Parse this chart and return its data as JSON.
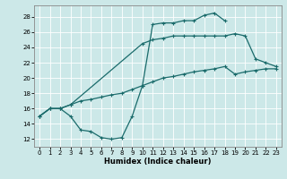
{
  "xlabel": "Humidex (Indice chaleur)",
  "xlim": [
    -0.5,
    23.5
  ],
  "ylim": [
    11,
    29.5
  ],
  "xticks": [
    0,
    1,
    2,
    3,
    4,
    5,
    6,
    7,
    8,
    9,
    10,
    11,
    12,
    13,
    14,
    15,
    16,
    17,
    18,
    19,
    20,
    21,
    22,
    23
  ],
  "yticks": [
    12,
    14,
    16,
    18,
    20,
    22,
    24,
    26,
    28
  ],
  "bg_color": "#cce8e8",
  "line_color": "#1a6b6b",
  "line1": {
    "x": [
      0,
      1,
      2,
      3,
      4,
      5,
      6,
      7,
      8,
      9,
      10,
      11,
      12,
      13,
      14,
      15,
      16,
      17,
      18
    ],
    "y": [
      15,
      16,
      16,
      15,
      13.2,
      13,
      12.2,
      12,
      12.2,
      15,
      19,
      27,
      27.2,
      27.2,
      27.5,
      27.5,
      28.2,
      28.5,
      27.5
    ]
  },
  "line2": {
    "x": [
      0,
      1,
      2,
      3,
      10,
      11,
      12,
      13,
      14,
      15,
      16,
      17,
      18,
      19,
      20,
      21,
      22,
      23
    ],
    "y": [
      15,
      16,
      16,
      16.5,
      24.5,
      25,
      25.2,
      25.5,
      25.5,
      25.5,
      25.5,
      25.5,
      25.5,
      25.8,
      25.5,
      22.5,
      22,
      21.5
    ]
  },
  "line3": {
    "x": [
      0,
      1,
      2,
      3,
      4,
      5,
      6,
      7,
      8,
      9,
      10,
      11,
      12,
      13,
      14,
      15,
      16,
      17,
      18,
      19,
      20,
      21,
      22,
      23
    ],
    "y": [
      15,
      16,
      16,
      16.5,
      17,
      17.2,
      17.5,
      17.8,
      18,
      18.5,
      19,
      19.5,
      20,
      20.2,
      20.5,
      20.8,
      21,
      21.2,
      21.5,
      20.5,
      20.8,
      21,
      21.2,
      21.2
    ]
  }
}
